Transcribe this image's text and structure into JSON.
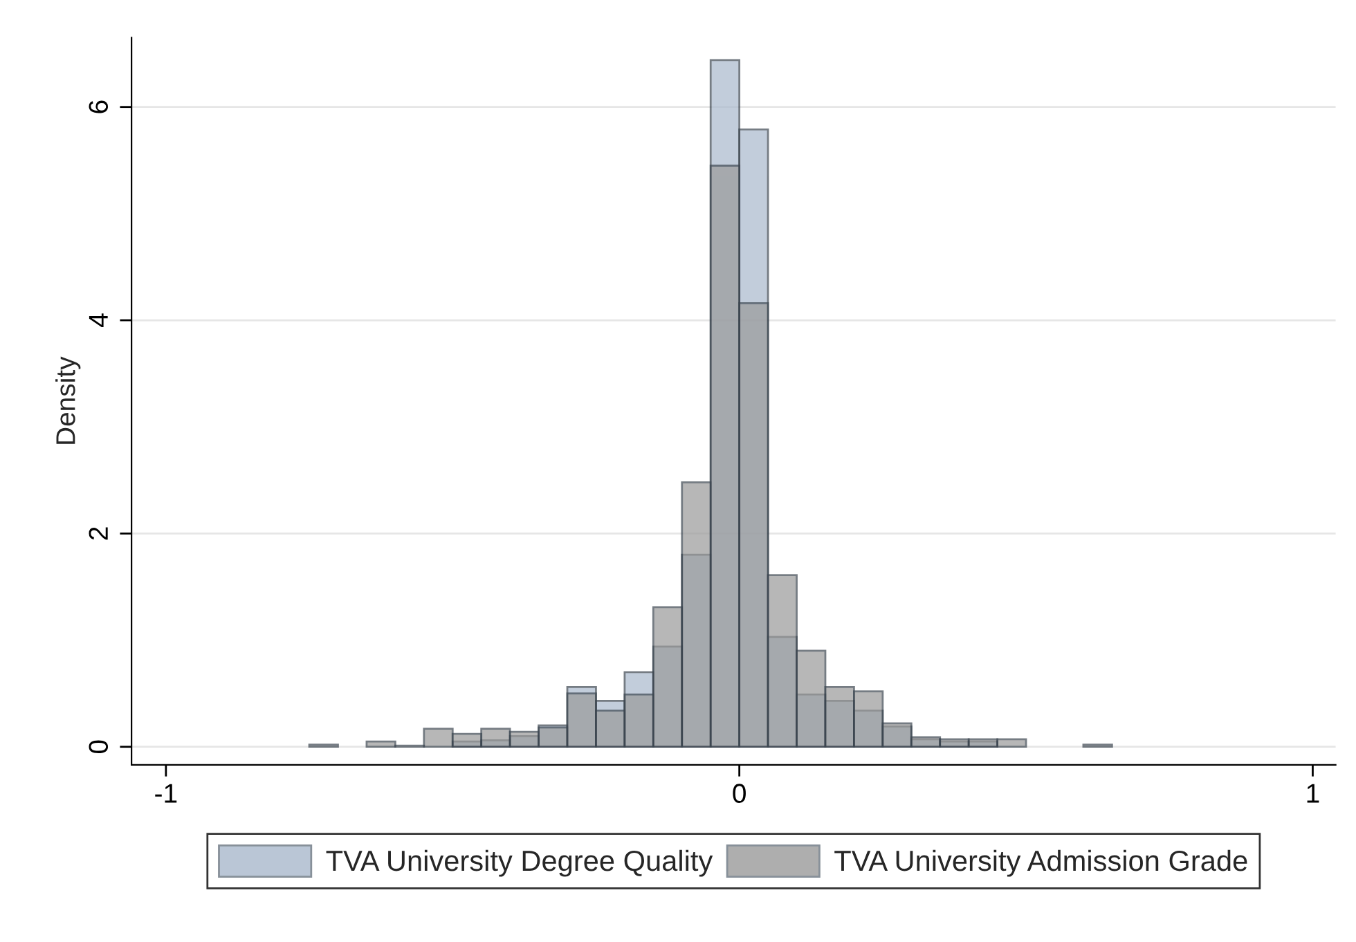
{
  "chart_data": {
    "type": "histogram",
    "ylabel": "Density",
    "bins": [
      -0.75,
      -0.7,
      -0.65,
      -0.6,
      -0.55,
      -0.5,
      -0.45,
      -0.4,
      -0.35,
      -0.3,
      -0.25,
      -0.2,
      -0.15,
      -0.1,
      -0.05,
      0,
      0.05,
      0.1,
      0.15,
      0.2,
      0.25,
      0.3,
      0.35,
      0.4,
      0.45,
      0.5,
      0.55,
      0.6,
      0.65
    ],
    "series": [
      {
        "name": "TVA University Degree Quality",
        "color": "#a9b8cc",
        "values": [
          0,
          0,
          null,
          null,
          null,
          0.05,
          0.06,
          0.1,
          0.2,
          0.56,
          0.43,
          0.7,
          0.94,
          1.8,
          6.44,
          5.79,
          1.03,
          0.49,
          0.43,
          0.34,
          0.19,
          0.07,
          0.05,
          0.05,
          0,
          0,
          0,
          0
        ]
      },
      {
        "name": "TVA University Admission Grade",
        "color": "#9a9a9a",
        "values": [
          0.02,
          0,
          0.05,
          0.01,
          0.17,
          0.12,
          0.17,
          0.14,
          0.18,
          0.5,
          0.34,
          0.49,
          1.31,
          2.48,
          5.45,
          4.16,
          1.61,
          0.9,
          0.56,
          0.52,
          0.22,
          0.09,
          0.07,
          0.07,
          0.07,
          0,
          0,
          0.02
        ]
      }
    ],
    "xlim": [
      -1.06,
      1.04
    ],
    "ylim": [
      -0.17,
      6.65
    ],
    "xticks": [
      -1,
      0,
      1
    ],
    "yticks": [
      0,
      2,
      4,
      6
    ],
    "grid": "y",
    "legend": "bottom"
  }
}
